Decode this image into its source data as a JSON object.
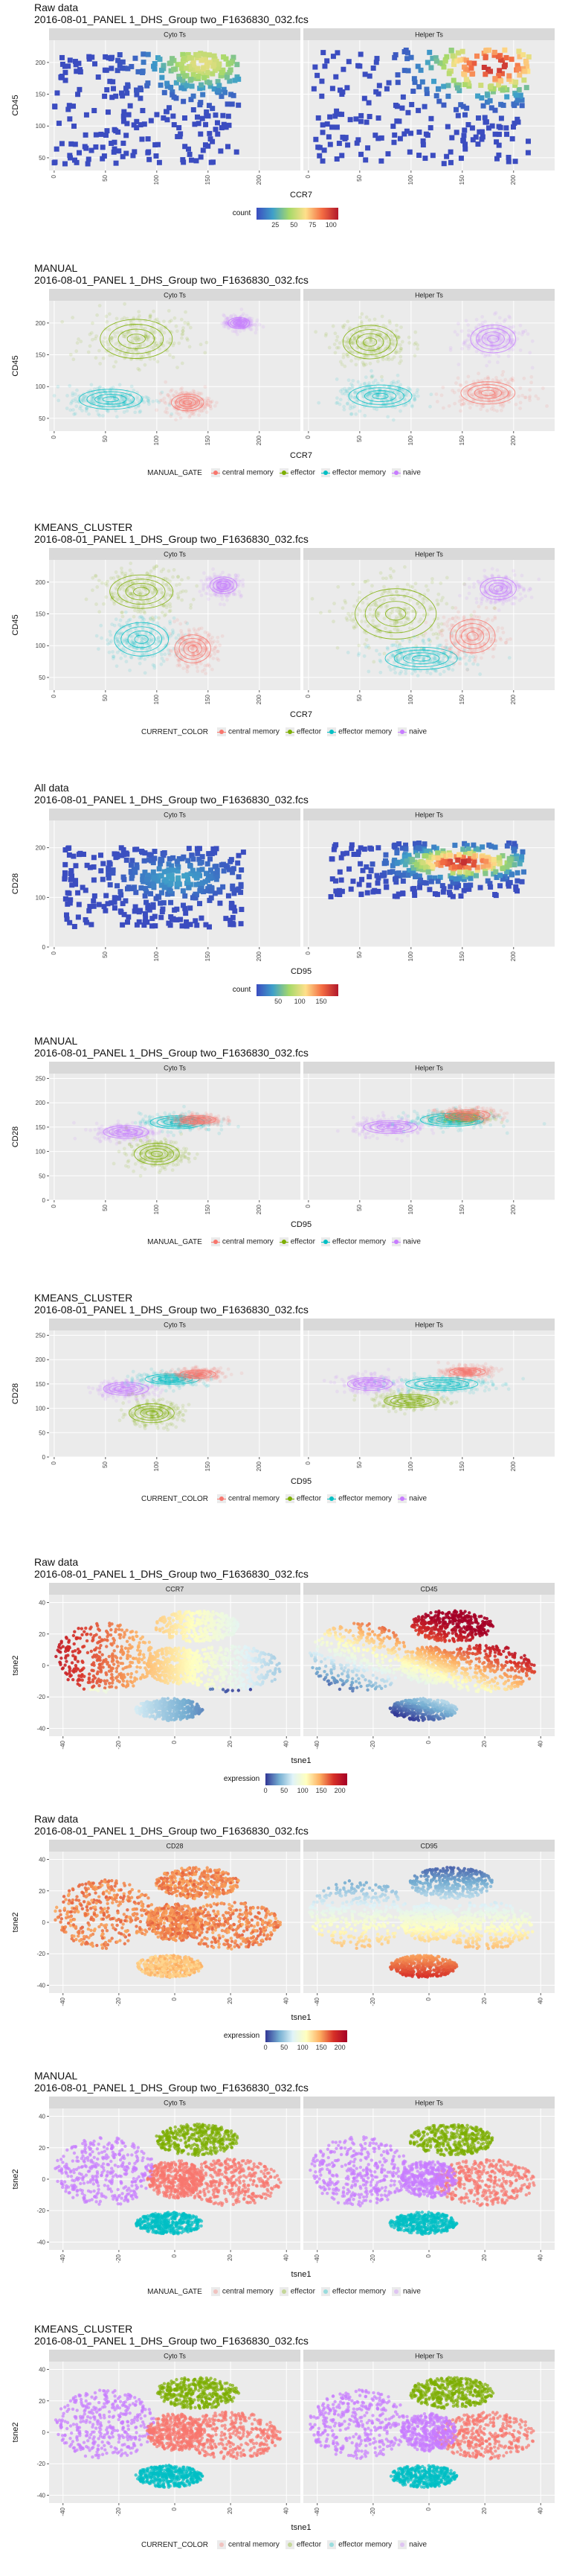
{
  "chart_data": [
    {
      "type": "heatmap",
      "title": "Raw data",
      "subtitle": "2016-08-01_PANEL 1_DHS_Group two_F1636830_032.fcs",
      "xlabel": "CCR7",
      "ylabel": "CD45",
      "xlim": [
        -5,
        240
      ],
      "ylim": [
        30,
        235
      ],
      "xticks": [
        0,
        50,
        100,
        150,
        200
      ],
      "yticks": [
        50,
        100,
        150,
        200
      ],
      "panels": [
        "Cyto Ts",
        "Helper Ts"
      ],
      "legend": {
        "title": "count",
        "ticks": [
          25,
          50,
          75,
          100
        ],
        "range": [
          0,
          110
        ]
      },
      "colorscale": [
        "#3b4cc0",
        "#3fa0c9",
        "#a6d96a",
        "#fee08b",
        "#f46d43",
        "#b2182b"
      ],
      "series": [
        {
          "panel": "Cyto Ts",
          "name": "",
          "x_range": [
            0,
            180
          ],
          "y_range": [
            40,
            215
          ],
          "density_peak": [
            145,
            198
          ],
          "peak_count": 60
        },
        {
          "panel": "Helper Ts",
          "name": "",
          "x_range": [
            5,
            215
          ],
          "y_range": [
            40,
            220
          ],
          "density_peak": [
            180,
            195
          ],
          "peak_count": 105
        }
      ]
    },
    {
      "type": "scatter",
      "title": "MANUAL",
      "subtitle": "2016-08-01_PANEL 1_DHS_Group two_F1636830_032.fcs",
      "xlabel": "CCR7",
      "ylabel": "CD45",
      "xlim": [
        -5,
        240
      ],
      "ylim": [
        30,
        235
      ],
      "xticks": [
        0,
        50,
        100,
        150,
        200
      ],
      "yticks": [
        50,
        100,
        150,
        200
      ],
      "panels": [
        "Cyto Ts",
        "Helper Ts"
      ],
      "legend": {
        "title": "MANUAL_GATE",
        "items": [
          "central memory",
          "effector",
          "effector memory",
          "naive"
        ]
      },
      "series": [
        {
          "panel": "Cyto Ts",
          "name": "effector",
          "center": [
            80,
            175
          ],
          "spread": [
            40,
            35
          ]
        },
        {
          "panel": "Cyto Ts",
          "name": "effector memory",
          "center": [
            55,
            80
          ],
          "spread": [
            35,
            18
          ]
        },
        {
          "panel": "Cyto Ts",
          "name": "central memory",
          "center": [
            130,
            75
          ],
          "spread": [
            18,
            15
          ]
        },
        {
          "panel": "Cyto Ts",
          "name": "naive",
          "center": [
            180,
            200
          ],
          "spread": [
            12,
            10
          ]
        },
        {
          "panel": "Helper Ts",
          "name": "effector",
          "center": [
            60,
            170
          ],
          "spread": [
            30,
            30
          ]
        },
        {
          "panel": "Helper Ts",
          "name": "effector memory",
          "center": [
            70,
            85
          ],
          "spread": [
            35,
            20
          ]
        },
        {
          "panel": "Helper Ts",
          "name": "central memory",
          "center": [
            175,
            90
          ],
          "spread": [
            30,
            20
          ]
        },
        {
          "panel": "Helper Ts",
          "name": "naive",
          "center": [
            180,
            175
          ],
          "spread": [
            25,
            25
          ]
        }
      ]
    },
    {
      "type": "scatter",
      "title": "KMEANS_CLUSTER",
      "subtitle": "2016-08-01_PANEL 1_DHS_Group two_F1636830_032.fcs",
      "xlabel": "CCR7",
      "ylabel": "CD45",
      "xlim": [
        -5,
        240
      ],
      "ylim": [
        30,
        235
      ],
      "xticks": [
        0,
        50,
        100,
        150,
        200
      ],
      "yticks": [
        50,
        100,
        150,
        200
      ],
      "panels": [
        "Cyto Ts",
        "Helper Ts"
      ],
      "legend": {
        "title": "CURRENT_COLOR",
        "items": [
          "central memory",
          "effector",
          "effector memory",
          "naive"
        ]
      },
      "series": [
        {
          "panel": "Cyto Ts",
          "name": "effector",
          "center": [
            85,
            185
          ],
          "spread": [
            35,
            30
          ]
        },
        {
          "panel": "Cyto Ts",
          "name": "effector memory",
          "center": [
            85,
            110
          ],
          "spread": [
            30,
            30
          ]
        },
        {
          "panel": "Cyto Ts",
          "name": "central memory",
          "center": [
            135,
            95
          ],
          "spread": [
            20,
            25
          ]
        },
        {
          "panel": "Cyto Ts",
          "name": "naive",
          "center": [
            165,
            195
          ],
          "spread": [
            15,
            15
          ]
        },
        {
          "panel": "Helper Ts",
          "name": "effector",
          "center": [
            85,
            150
          ],
          "spread": [
            45,
            45
          ]
        },
        {
          "panel": "Helper Ts",
          "name": "effector memory",
          "center": [
            110,
            80
          ],
          "spread": [
            40,
            20
          ]
        },
        {
          "panel": "Helper Ts",
          "name": "central memory",
          "center": [
            160,
            115
          ],
          "spread": [
            25,
            30
          ]
        },
        {
          "panel": "Helper Ts",
          "name": "naive",
          "center": [
            185,
            190
          ],
          "spread": [
            20,
            20
          ]
        }
      ]
    },
    {
      "type": "heatmap",
      "title": "All data",
      "subtitle": "2016-08-01_PANEL 1_DHS_Group two_F1636830_032.fcs",
      "xlabel": "CD95",
      "ylabel": "CD28",
      "xlim": [
        -5,
        240
      ],
      "ylim": [
        0,
        255
      ],
      "xticks": [
        0,
        50,
        100,
        150,
        200
      ],
      "yticks": [
        0,
        100,
        200
      ],
      "panels": [
        "Cyto Ts",
        "Helper Ts"
      ],
      "legend": {
        "title": "count",
        "ticks": [
          50,
          100,
          150
        ],
        "range": [
          0,
          190
        ]
      },
      "colorscale": [
        "#3b4cc0",
        "#3fa0c9",
        "#a6d96a",
        "#fee08b",
        "#f46d43",
        "#b2182b"
      ],
      "series": [
        {
          "panel": "Cyto Ts",
          "name": "",
          "x_range": [
            10,
            185
          ],
          "y_range": [
            40,
            200
          ],
          "density_peak": [
            120,
            140
          ],
          "peak_count": 40
        },
        {
          "panel": "Helper Ts",
          "name": "",
          "x_range": [
            20,
            210
          ],
          "y_range": [
            100,
            210
          ],
          "density_peak": [
            150,
            170
          ],
          "peak_count": 180
        }
      ]
    },
    {
      "type": "scatter",
      "title": "MANUAL",
      "subtitle": "2016-08-01_PANEL 1_DHS_Group two_F1636830_032.fcs",
      "xlabel": "CD95",
      "ylabel": "CD28",
      "xlim": [
        -5,
        240
      ],
      "ylim": [
        0,
        260
      ],
      "xticks": [
        0,
        50,
        100,
        150,
        200
      ],
      "yticks": [
        0,
        50,
        100,
        150,
        200,
        250
      ],
      "panels": [
        "Cyto Ts",
        "Helper Ts"
      ],
      "legend": {
        "title": "MANUAL_GATE",
        "items": [
          "central memory",
          "effector",
          "effector memory",
          "naive"
        ]
      },
      "series": [
        {
          "panel": "Cyto Ts",
          "name": "naive",
          "center": [
            70,
            140
          ],
          "spread": [
            25,
            15
          ]
        },
        {
          "panel": "Cyto Ts",
          "name": "effector",
          "center": [
            100,
            95
          ],
          "spread": [
            25,
            25
          ]
        },
        {
          "panel": "Cyto Ts",
          "name": "effector memory",
          "center": [
            120,
            160
          ],
          "spread": [
            30,
            15
          ]
        },
        {
          "panel": "Cyto Ts",
          "name": "central memory",
          "center": [
            140,
            165
          ],
          "spread": [
            20,
            10
          ]
        },
        {
          "panel": "Helper Ts",
          "name": "naive",
          "center": [
            80,
            150
          ],
          "spread": [
            30,
            15
          ]
        },
        {
          "panel": "Helper Ts",
          "name": "effector",
          "center": [
            150,
            170
          ],
          "spread": [
            20,
            10
          ]
        },
        {
          "panel": "Helper Ts",
          "name": "effector memory",
          "center": [
            140,
            165
          ],
          "spread": [
            35,
            15
          ]
        },
        {
          "panel": "Helper Ts",
          "name": "central memory",
          "center": [
            155,
            175
          ],
          "spread": [
            25,
            12
          ]
        }
      ]
    },
    {
      "type": "scatter",
      "title": "KMEANS_CLUSTER",
      "subtitle": "2016-08-01_PANEL 1_DHS_Group two_F1636830_032.fcs",
      "xlabel": "CD95",
      "ylabel": "CD28",
      "xlim": [
        -5,
        240
      ],
      "ylim": [
        0,
        260
      ],
      "xticks": [
        0,
        50,
        100,
        150,
        200
      ],
      "yticks": [
        0,
        50,
        100,
        150,
        200,
        250
      ],
      "panels": [
        "Cyto Ts",
        "Helper Ts"
      ],
      "legend": {
        "title": "CURRENT_COLOR",
        "items": [
          "central memory",
          "effector",
          "effector memory",
          "naive"
        ]
      },
      "series": [
        {
          "panel": "Cyto Ts",
          "name": "naive",
          "center": [
            70,
            140
          ],
          "spread": [
            25,
            15
          ]
        },
        {
          "panel": "Cyto Ts",
          "name": "effector",
          "center": [
            95,
            90
          ],
          "spread": [
            25,
            22
          ]
        },
        {
          "panel": "Cyto Ts",
          "name": "effector memory",
          "center": [
            115,
            160
          ],
          "spread": [
            30,
            12
          ]
        },
        {
          "panel": "Cyto Ts",
          "name": "central memory",
          "center": [
            140,
            170
          ],
          "spread": [
            20,
            10
          ]
        },
        {
          "panel": "Helper Ts",
          "name": "naive",
          "center": [
            60,
            150
          ],
          "spread": [
            25,
            15
          ]
        },
        {
          "panel": "Helper Ts",
          "name": "effector",
          "center": [
            100,
            115
          ],
          "spread": [
            30,
            15
          ]
        },
        {
          "panel": "Helper Ts",
          "name": "effector memory",
          "center": [
            130,
            150
          ],
          "spread": [
            40,
            15
          ]
        },
        {
          "panel": "Helper Ts",
          "name": "central memory",
          "center": [
            155,
            175
          ],
          "spread": [
            20,
            10
          ]
        }
      ]
    },
    {
      "type": "scatter",
      "title": "Raw data",
      "subtitle": "2016-08-01_PANEL 1_DHS_Group two_F1636830_032.fcs",
      "xlabel": "tsne1",
      "ylabel": "tsne2",
      "xlim": [
        -45,
        45
      ],
      "ylim": [
        -45,
        45
      ],
      "xticks": [
        -40,
        -20,
        0,
        20,
        40
      ],
      "yticks": [
        -40,
        -20,
        0,
        20,
        40
      ],
      "panels": [
        "CCR7",
        "CD45"
      ],
      "legend": {
        "title": "expression",
        "ticks": [
          0,
          50,
          100,
          150,
          200
        ],
        "range": [
          0,
          220
        ]
      },
      "colorscale": [
        "#313695",
        "#74add1",
        "#e0f3f8",
        "#ffffbf",
        "#fdae61",
        "#d73027",
        "#a50026"
      ]
    },
    {
      "type": "scatter",
      "title": "Raw data",
      "subtitle": "2016-08-01_PANEL 1_DHS_Group two_F1636830_032.fcs",
      "xlabel": "tsne1",
      "ylabel": "tsne2",
      "xlim": [
        -45,
        45
      ],
      "ylim": [
        -45,
        45
      ],
      "xticks": [
        -40,
        -20,
        0,
        20,
        40
      ],
      "yticks": [
        -40,
        -20,
        0,
        20,
        40
      ],
      "panels": [
        "CD28",
        "CD95"
      ],
      "legend": {
        "title": "expression",
        "ticks": [
          0,
          50,
          100,
          150,
          200
        ],
        "range": [
          0,
          220
        ]
      },
      "colorscale": [
        "#313695",
        "#74add1",
        "#e0f3f8",
        "#ffffbf",
        "#fdae61",
        "#d73027",
        "#a50026"
      ]
    },
    {
      "type": "scatter",
      "title": "MANUAL",
      "subtitle": "2016-08-01_PANEL 1_DHS_Group two_F1636830_032.fcs",
      "xlabel": "tsne1",
      "ylabel": "tsne2",
      "xlim": [
        -45,
        45
      ],
      "ylim": [
        -45,
        45
      ],
      "xticks": [
        -40,
        -20,
        0,
        20,
        40
      ],
      "yticks": [
        -40,
        -20,
        0,
        20,
        40
      ],
      "panels": [
        "Cyto Ts",
        "Helper Ts"
      ],
      "legend": {
        "title": "MANUAL_GATE",
        "items": [
          "central memory",
          "effector",
          "effector memory",
          "naive"
        ]
      }
    },
    {
      "type": "scatter",
      "title": "KMEANS_CLUSTER",
      "subtitle": "2016-08-01_PANEL 1_DHS_Group two_F1636830_032.fcs",
      "xlabel": "tsne1",
      "ylabel": "tsne2",
      "xlim": [
        -45,
        45
      ],
      "ylim": [
        -45,
        45
      ],
      "xticks": [
        -40,
        -20,
        0,
        20,
        40
      ],
      "yticks": [
        -40,
        -20,
        0,
        20,
        40
      ],
      "panels": [
        "Cyto Ts",
        "Helper Ts"
      ],
      "legend": {
        "title": "CURRENT_COLOR",
        "items": [
          "central memory",
          "effector",
          "effector memory",
          "naive"
        ]
      }
    }
  ],
  "colors": {
    "central memory": "#f8766d",
    "effector": "#7cae00",
    "effector memory": "#00bfc4",
    "naive": "#c77cff",
    "panel_bg": "#ebebeb",
    "strip_bg": "#d9d9d9",
    "grid": "#ffffff"
  }
}
